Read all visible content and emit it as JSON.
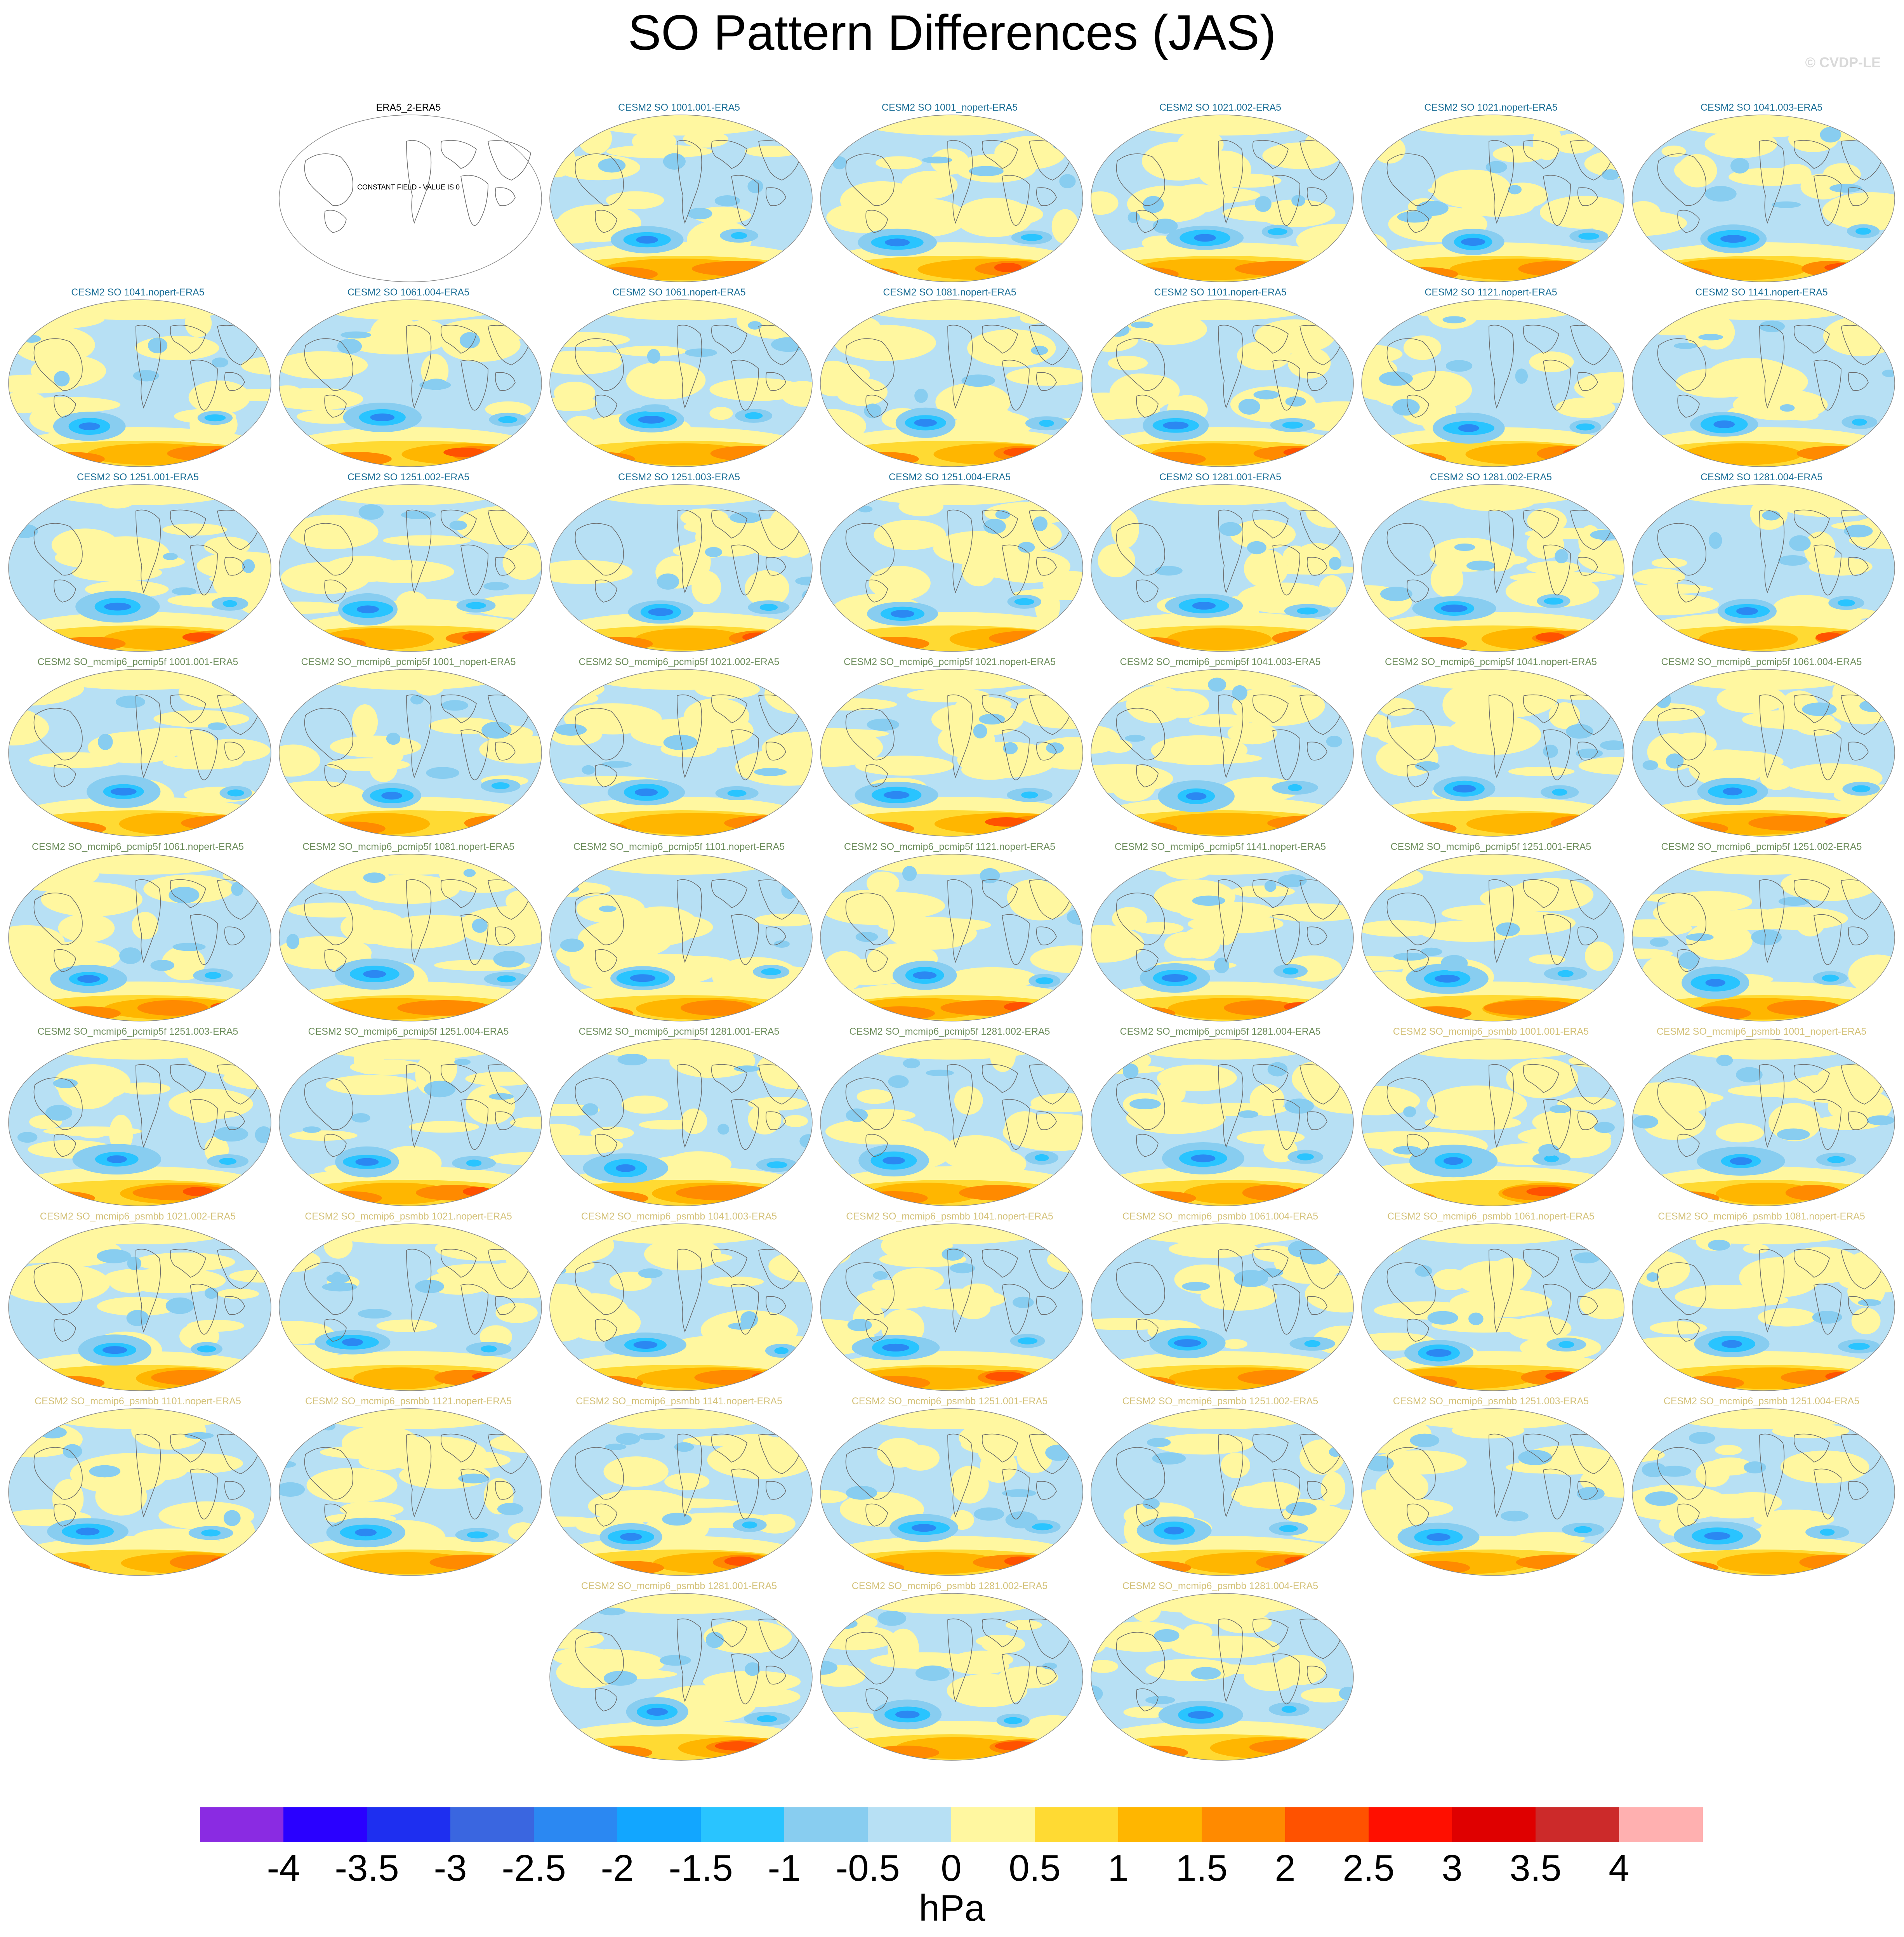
{
  "title": "SO Pattern Differences (JAS)",
  "credit": "© CVDP-LE",
  "colors": {
    "title_cesm2": "#1a6e96",
    "title_pcmip": "#6f8f5e",
    "title_psmbb": "#d4c27a",
    "title_obs": "#000000"
  },
  "panels": [
    {
      "row": 0,
      "col": 1,
      "label": "ERA5_2-ERA5",
      "group": "obs",
      "constant": "CONSTANT FIELD - VALUE IS 0"
    },
    {
      "row": 0,
      "col": 2,
      "label": "CESM2 SO 1001.001-ERA5",
      "group": "cesm2"
    },
    {
      "row": 0,
      "col": 3,
      "label": "CESM2 SO 1001_nopert-ERA5",
      "group": "cesm2"
    },
    {
      "row": 0,
      "col": 4,
      "label": "CESM2 SO 1021.002-ERA5",
      "group": "cesm2"
    },
    {
      "row": 0,
      "col": 5,
      "label": "CESM2 SO 1021.nopert-ERA5",
      "group": "cesm2"
    },
    {
      "row": 0,
      "col": 6,
      "label": "CESM2 SO 1041.003-ERA5",
      "group": "cesm2"
    },
    {
      "row": 1,
      "col": 0,
      "label": "CESM2 SO 1041.nopert-ERA5",
      "group": "cesm2"
    },
    {
      "row": 1,
      "col": 1,
      "label": "CESM2 SO 1061.004-ERA5",
      "group": "cesm2"
    },
    {
      "row": 1,
      "col": 2,
      "label": "CESM2 SO 1061.nopert-ERA5",
      "group": "cesm2"
    },
    {
      "row": 1,
      "col": 3,
      "label": "CESM2 SO 1081.nopert-ERA5",
      "group": "cesm2"
    },
    {
      "row": 1,
      "col": 4,
      "label": "CESM2 SO 1101.nopert-ERA5",
      "group": "cesm2"
    },
    {
      "row": 1,
      "col": 5,
      "label": "CESM2 SO 1121.nopert-ERA5",
      "group": "cesm2"
    },
    {
      "row": 1,
      "col": 6,
      "label": "CESM2 SO 1141.nopert-ERA5",
      "group": "cesm2"
    },
    {
      "row": 2,
      "col": 0,
      "label": "CESM2 SO 1251.001-ERA5",
      "group": "cesm2"
    },
    {
      "row": 2,
      "col": 1,
      "label": "CESM2 SO 1251.002-ERA5",
      "group": "cesm2"
    },
    {
      "row": 2,
      "col": 2,
      "label": "CESM2 SO 1251.003-ERA5",
      "group": "cesm2"
    },
    {
      "row": 2,
      "col": 3,
      "label": "CESM2 SO 1251.004-ERA5",
      "group": "cesm2"
    },
    {
      "row": 2,
      "col": 4,
      "label": "CESM2 SO 1281.001-ERA5",
      "group": "cesm2"
    },
    {
      "row": 2,
      "col": 5,
      "label": "CESM2 SO 1281.002-ERA5",
      "group": "cesm2"
    },
    {
      "row": 2,
      "col": 6,
      "label": "CESM2 SO 1281.004-ERA5",
      "group": "cesm2"
    },
    {
      "row": 3,
      "col": 0,
      "label": "CESM2 SO_mcmip6_pcmip5f 1001.001-ERA5",
      "group": "pcmip"
    },
    {
      "row": 3,
      "col": 1,
      "label": "CESM2 SO_mcmip6_pcmip5f 1001_nopert-ERA5",
      "group": "pcmip"
    },
    {
      "row": 3,
      "col": 2,
      "label": "CESM2 SO_mcmip6_pcmip5f 1021.002-ERA5",
      "group": "pcmip"
    },
    {
      "row": 3,
      "col": 3,
      "label": "CESM2 SO_mcmip6_pcmip5f 1021.nopert-ERA5",
      "group": "pcmip"
    },
    {
      "row": 3,
      "col": 4,
      "label": "CESM2 SO_mcmip6_pcmip5f 1041.003-ERA5",
      "group": "pcmip"
    },
    {
      "row": 3,
      "col": 5,
      "label": "CESM2 SO_mcmip6_pcmip5f 1041.nopert-ERA5",
      "group": "pcmip"
    },
    {
      "row": 3,
      "col": 6,
      "label": "CESM2 SO_mcmip6_pcmip5f 1061.004-ERA5",
      "group": "pcmip"
    },
    {
      "row": 4,
      "col": 0,
      "label": "CESM2 SO_mcmip6_pcmip5f 1061.nopert-ERA5",
      "group": "pcmip"
    },
    {
      "row": 4,
      "col": 1,
      "label": "CESM2 SO_mcmip6_pcmip5f 1081.nopert-ERA5",
      "group": "pcmip"
    },
    {
      "row": 4,
      "col": 2,
      "label": "CESM2 SO_mcmip6_pcmip5f 1101.nopert-ERA5",
      "group": "pcmip"
    },
    {
      "row": 4,
      "col": 3,
      "label": "CESM2 SO_mcmip6_pcmip5f 1121.nopert-ERA5",
      "group": "pcmip"
    },
    {
      "row": 4,
      "col": 4,
      "label": "CESM2 SO_mcmip6_pcmip5f 1141.nopert-ERA5",
      "group": "pcmip"
    },
    {
      "row": 4,
      "col": 5,
      "label": "CESM2 SO_mcmip6_pcmip5f 1251.001-ERA5",
      "group": "pcmip"
    },
    {
      "row": 4,
      "col": 6,
      "label": "CESM2 SO_mcmip6_pcmip5f 1251.002-ERA5",
      "group": "pcmip"
    },
    {
      "row": 5,
      "col": 0,
      "label": "CESM2 SO_mcmip6_pcmip5f 1251.003-ERA5",
      "group": "pcmip"
    },
    {
      "row": 5,
      "col": 1,
      "label": "CESM2 SO_mcmip6_pcmip5f 1251.004-ERA5",
      "group": "pcmip"
    },
    {
      "row": 5,
      "col": 2,
      "label": "CESM2 SO_mcmip6_pcmip5f 1281.001-ERA5",
      "group": "pcmip"
    },
    {
      "row": 5,
      "col": 3,
      "label": "CESM2 SO_mcmip6_pcmip5f 1281.002-ERA5",
      "group": "pcmip"
    },
    {
      "row": 5,
      "col": 4,
      "label": "CESM2 SO_mcmip6_pcmip5f 1281.004-ERA5",
      "group": "pcmip"
    },
    {
      "row": 5,
      "col": 5,
      "label": "CESM2 SO_mcmip6_psmbb 1001.001-ERA5",
      "group": "psmbb"
    },
    {
      "row": 5,
      "col": 6,
      "label": "CESM2 SO_mcmip6_psmbb 1001_nopert-ERA5",
      "group": "psmbb"
    },
    {
      "row": 6,
      "col": 0,
      "label": "CESM2 SO_mcmip6_psmbb 1021.002-ERA5",
      "group": "psmbb"
    },
    {
      "row": 6,
      "col": 1,
      "label": "CESM2 SO_mcmip6_psmbb 1021.nopert-ERA5",
      "group": "psmbb"
    },
    {
      "row": 6,
      "col": 2,
      "label": "CESM2 SO_mcmip6_psmbb 1041.003-ERA5",
      "group": "psmbb"
    },
    {
      "row": 6,
      "col": 3,
      "label": "CESM2 SO_mcmip6_psmbb 1041.nopert-ERA5",
      "group": "psmbb"
    },
    {
      "row": 6,
      "col": 4,
      "label": "CESM2 SO_mcmip6_psmbb 1061.004-ERA5",
      "group": "psmbb"
    },
    {
      "row": 6,
      "col": 5,
      "label": "CESM2 SO_mcmip6_psmbb 1061.nopert-ERA5",
      "group": "psmbb"
    },
    {
      "row": 6,
      "col": 6,
      "label": "CESM2 SO_mcmip6_psmbb 1081.nopert-ERA5",
      "group": "psmbb"
    },
    {
      "row": 7,
      "col": 0,
      "label": "CESM2 SO_mcmip6_psmbb 1101.nopert-ERA5",
      "group": "psmbb"
    },
    {
      "row": 7,
      "col": 1,
      "label": "CESM2 SO_mcmip6_psmbb 1121.nopert-ERA5",
      "group": "psmbb"
    },
    {
      "row": 7,
      "col": 2,
      "label": "CESM2 SO_mcmip6_psmbb 1141.nopert-ERA5",
      "group": "psmbb"
    },
    {
      "row": 7,
      "col": 3,
      "label": "CESM2 SO_mcmip6_psmbb 1251.001-ERA5",
      "group": "psmbb"
    },
    {
      "row": 7,
      "col": 4,
      "label": "CESM2 SO_mcmip6_psmbb 1251.002-ERA5",
      "group": "psmbb"
    },
    {
      "row": 7,
      "col": 5,
      "label": "CESM2 SO_mcmip6_psmbb 1251.003-ERA5",
      "group": "psmbb"
    },
    {
      "row": 7,
      "col": 6,
      "label": "CESM2 SO_mcmip6_psmbb 1251.004-ERA5",
      "group": "psmbb"
    },
    {
      "row": 8,
      "col": 2,
      "label": "CESM2 SO_mcmip6_psmbb 1281.001-ERA5",
      "group": "psmbb"
    },
    {
      "row": 8,
      "col": 3,
      "label": "CESM2 SO_mcmip6_psmbb 1281.002-ERA5",
      "group": "psmbb"
    },
    {
      "row": 8,
      "col": 4,
      "label": "CESM2 SO_mcmip6_psmbb 1281.004-ERA5",
      "group": "psmbb"
    }
  ],
  "colorbar": {
    "labels": [
      "-4",
      "-3.5",
      "-3",
      "-2.5",
      "-2",
      "-1.5",
      "-1",
      "-0.5",
      "0",
      "0.5",
      "1",
      "1.5",
      "2",
      "2.5",
      "3",
      "3.5",
      "4"
    ],
    "colors": [
      "#8a2be2",
      "#2a00ff",
      "#1e2ff0",
      "#3a66e0",
      "#2b88f2",
      "#12a6ff",
      "#29c4ff",
      "#88cdf0",
      "#b7e0f4",
      "#fff7a0",
      "#ffda33",
      "#ffb600",
      "#ff8a00",
      "#ff5200",
      "#ff0f00",
      "#df0000",
      "#cc2a2a",
      "#ffb0b0"
    ],
    "units": "hPa"
  }
}
